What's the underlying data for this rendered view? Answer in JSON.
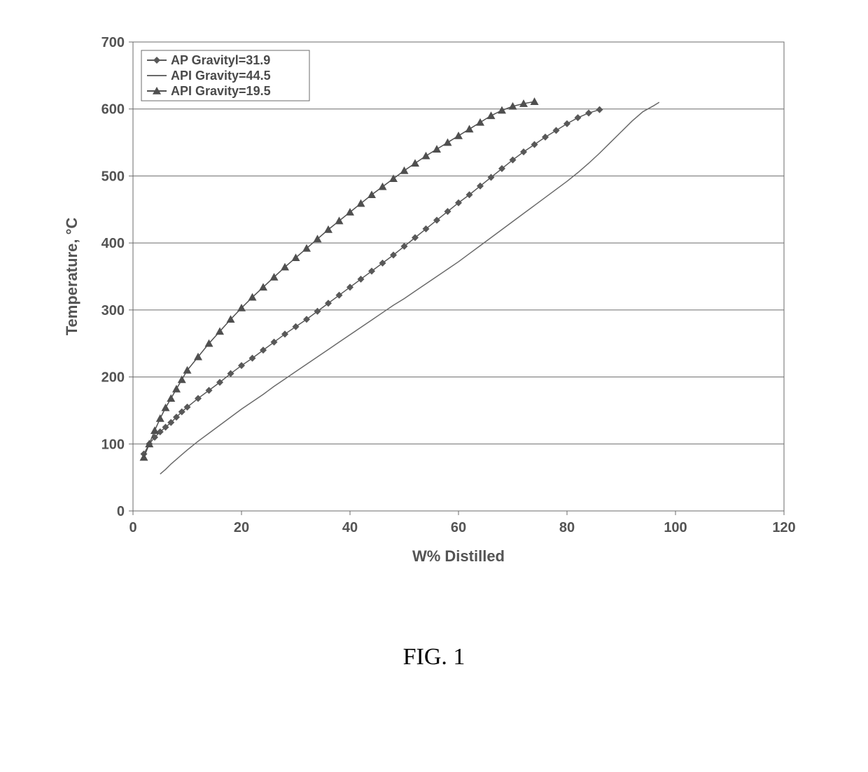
{
  "figure_caption": "FIG. 1",
  "chart": {
    "type": "line-scatter",
    "background_color": "#ffffff",
    "plot_border_color": "#6b6b6b",
    "grid_color": "#6b6b6b",
    "grid_on": true,
    "x_axis": {
      "label": "W% Distilled",
      "min": 0,
      "max": 120,
      "tick_step": 20,
      "label_fontsize": 22,
      "tick_fontsize": 20
    },
    "y_axis": {
      "label": "Temperature, °C",
      "min": 0,
      "max": 700,
      "tick_step": 100,
      "label_fontsize": 22,
      "tick_fontsize": 20
    },
    "legend": {
      "position": "top-left-inside",
      "border_color": "#6b6b6b",
      "items": [
        {
          "label": "AP Gravityl=31.9",
          "series_key": "s1"
        },
        {
          "label": "API Gravity=44.5",
          "series_key": "s2"
        },
        {
          "label": "API Gravity=19.5",
          "series_key": "s3"
        }
      ]
    },
    "series": {
      "s1": {
        "name": "API Gravity 31.9",
        "color": "#585858",
        "marker": "diamond",
        "marker_size": 5,
        "line_width": 1.5,
        "data": [
          [
            2,
            85
          ],
          [
            3,
            100
          ],
          [
            4,
            110
          ],
          [
            5,
            118
          ],
          [
            6,
            125
          ],
          [
            7,
            132
          ],
          [
            8,
            140
          ],
          [
            9,
            148
          ],
          [
            10,
            155
          ],
          [
            12,
            168
          ],
          [
            14,
            180
          ],
          [
            16,
            192
          ],
          [
            18,
            205
          ],
          [
            20,
            217
          ],
          [
            22,
            228
          ],
          [
            24,
            240
          ],
          [
            26,
            252
          ],
          [
            28,
            264
          ],
          [
            30,
            275
          ],
          [
            32,
            286
          ],
          [
            34,
            298
          ],
          [
            36,
            310
          ],
          [
            38,
            322
          ],
          [
            40,
            334
          ],
          [
            42,
            346
          ],
          [
            44,
            358
          ],
          [
            46,
            370
          ],
          [
            48,
            382
          ],
          [
            50,
            395
          ],
          [
            52,
            408
          ],
          [
            54,
            421
          ],
          [
            56,
            434
          ],
          [
            58,
            447
          ],
          [
            60,
            460
          ],
          [
            62,
            472
          ],
          [
            64,
            485
          ],
          [
            66,
            498
          ],
          [
            68,
            511
          ],
          [
            70,
            524
          ],
          [
            72,
            536
          ],
          [
            74,
            547
          ],
          [
            76,
            558
          ],
          [
            78,
            568
          ],
          [
            80,
            578
          ],
          [
            82,
            587
          ],
          [
            84,
            594
          ],
          [
            86,
            599
          ]
        ]
      },
      "s2": {
        "name": "API Gravity 44.5",
        "color": "#6a6a6a",
        "marker": "dash",
        "marker_size": 5,
        "line_width": 1.5,
        "data": [
          [
            5,
            55
          ],
          [
            6,
            62
          ],
          [
            7,
            70
          ],
          [
            8,
            77
          ],
          [
            9,
            84
          ],
          [
            10,
            91
          ],
          [
            12,
            104
          ],
          [
            14,
            116
          ],
          [
            16,
            128
          ],
          [
            18,
            140
          ],
          [
            20,
            152
          ],
          [
            22,
            163
          ],
          [
            24,
            174
          ],
          [
            26,
            186
          ],
          [
            28,
            197
          ],
          [
            30,
            208
          ],
          [
            32,
            219
          ],
          [
            34,
            230
          ],
          [
            36,
            241
          ],
          [
            38,
            252
          ],
          [
            40,
            263
          ],
          [
            42,
            274
          ],
          [
            44,
            285
          ],
          [
            46,
            296
          ],
          [
            48,
            307
          ],
          [
            50,
            317
          ],
          [
            52,
            328
          ],
          [
            54,
            339
          ],
          [
            56,
            350
          ],
          [
            58,
            361
          ],
          [
            60,
            372
          ],
          [
            62,
            384
          ],
          [
            64,
            396
          ],
          [
            66,
            408
          ],
          [
            68,
            420
          ],
          [
            70,
            432
          ],
          [
            72,
            444
          ],
          [
            74,
            456
          ],
          [
            76,
            468
          ],
          [
            78,
            480
          ],
          [
            80,
            492
          ],
          [
            82,
            505
          ],
          [
            84,
            519
          ],
          [
            86,
            534
          ],
          [
            88,
            550
          ],
          [
            90,
            566
          ],
          [
            92,
            582
          ],
          [
            94,
            596
          ],
          [
            96,
            605
          ],
          [
            97,
            610
          ]
        ]
      },
      "s3": {
        "name": "API Gravity 19.5",
        "color": "#4f4f4f",
        "marker": "triangle",
        "marker_size": 6,
        "line_width": 1.5,
        "data": [
          [
            2,
            80
          ],
          [
            3,
            100
          ],
          [
            4,
            120
          ],
          [
            5,
            138
          ],
          [
            6,
            154
          ],
          [
            7,
            168
          ],
          [
            8,
            182
          ],
          [
            9,
            196
          ],
          [
            10,
            210
          ],
          [
            12,
            230
          ],
          [
            14,
            250
          ],
          [
            16,
            268
          ],
          [
            18,
            286
          ],
          [
            20,
            303
          ],
          [
            22,
            319
          ],
          [
            24,
            334
          ],
          [
            26,
            349
          ],
          [
            28,
            364
          ],
          [
            30,
            378
          ],
          [
            32,
            392
          ],
          [
            34,
            406
          ],
          [
            36,
            420
          ],
          [
            38,
            433
          ],
          [
            40,
            446
          ],
          [
            42,
            459
          ],
          [
            44,
            472
          ],
          [
            46,
            484
          ],
          [
            48,
            496
          ],
          [
            50,
            508
          ],
          [
            52,
            519
          ],
          [
            54,
            530
          ],
          [
            56,
            540
          ],
          [
            58,
            550
          ],
          [
            60,
            560
          ],
          [
            62,
            570
          ],
          [
            64,
            580
          ],
          [
            66,
            590
          ],
          [
            68,
            598
          ],
          [
            70,
            604
          ],
          [
            72,
            608
          ],
          [
            74,
            611
          ]
        ]
      }
    }
  }
}
